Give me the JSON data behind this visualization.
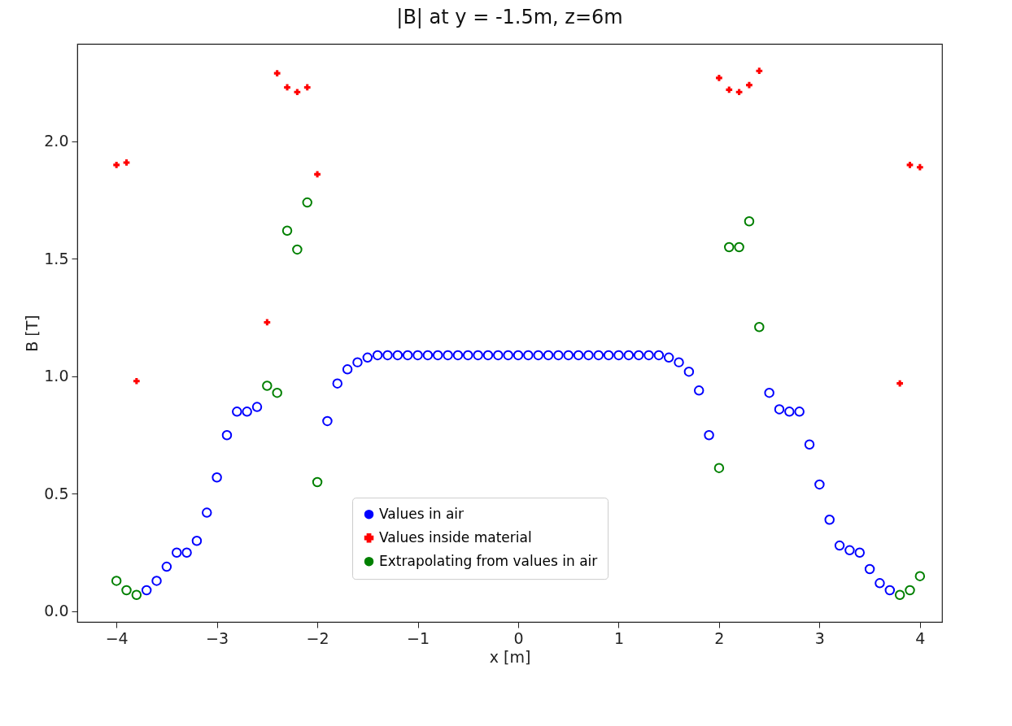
{
  "chart_data": {
    "type": "scatter",
    "title": "|B| at y = -1.5m, z=6m",
    "xlabel": "x [m]",
    "ylabel": "B [T]",
    "xlim": [
      -4.39,
      4.22
    ],
    "ylim": [
      -0.045,
      2.415
    ],
    "xticks": [
      {
        "value": -4,
        "label": "−4"
      },
      {
        "value": -3,
        "label": "−3"
      },
      {
        "value": -2,
        "label": "−2"
      },
      {
        "value": -1,
        "label": "−1"
      },
      0,
      1,
      2,
      3,
      4
    ],
    "yticks": [
      {
        "value": 0,
        "label": "0.0"
      },
      0.5,
      {
        "value": 1,
        "label": "1.0"
      },
      1.5,
      {
        "value": 2,
        "label": "2.0"
      }
    ],
    "grid": false,
    "legend": "bottom",
    "series": [
      {
        "name": "Values in air",
        "color": "#0000ff",
        "marker": "circle",
        "x": [
          -3.7,
          -3.6,
          -3.5,
          -3.4,
          -3.3,
          -3.2,
          -3.1,
          -3.0,
          -2.9,
          -2.8,
          -2.7,
          -2.6,
          -1.9,
          -1.8,
          -1.7,
          -1.6,
          -1.5,
          -1.4,
          -1.3,
          -1.2,
          -1.1,
          -1.0,
          -0.9,
          -0.8,
          -0.7,
          -0.6,
          -0.5,
          -0.4,
          -0.3,
          -0.2,
          -0.1,
          0,
          0.1,
          0.2,
          0.3,
          0.4,
          0.5,
          0.6,
          0.7,
          0.8,
          0.9,
          1.0,
          1.1,
          1.2,
          1.3,
          1.4,
          1.5,
          1.6,
          1.7,
          1.8,
          1.9,
          2.5,
          2.6,
          2.7,
          2.8,
          2.9,
          3.0,
          3.1,
          3.2,
          3.3,
          3.4,
          3.5,
          3.6,
          3.7
        ],
        "values": [
          0.09,
          0.13,
          0.19,
          0.25,
          0.25,
          0.3,
          0.42,
          0.57,
          0.75,
          0.85,
          0.85,
          0.87,
          0.81,
          0.97,
          1.03,
          1.06,
          1.08,
          1.09,
          1.09,
          1.09,
          1.09,
          1.09,
          1.09,
          1.09,
          1.09,
          1.09,
          1.09,
          1.09,
          1.09,
          1.09,
          1.09,
          1.09,
          1.09,
          1.09,
          1.09,
          1.09,
          1.09,
          1.09,
          1.09,
          1.09,
          1.09,
          1.09,
          1.09,
          1.09,
          1.09,
          1.09,
          1.08,
          1.06,
          1.02,
          0.94,
          0.75,
          0.93,
          0.86,
          0.85,
          0.85,
          0.71,
          0.54,
          0.39,
          0.28,
          0.26,
          0.25,
          0.18,
          0.12,
          0.09
        ]
      },
      {
        "name": "Values inside material",
        "color": "#ff0000",
        "marker": "cross",
        "x": [
          -4.0,
          -3.9,
          -3.8,
          -2.5,
          -2.4,
          -2.3,
          -2.2,
          -2.1,
          -2.0,
          2.0,
          2.1,
          2.2,
          2.3,
          2.4,
          3.8,
          3.9,
          4.0
        ],
        "values": [
          1.9,
          1.91,
          0.98,
          1.23,
          2.29,
          2.23,
          2.21,
          2.23,
          1.86,
          2.27,
          2.22,
          2.21,
          2.24,
          2.3,
          0.97,
          1.9,
          1.89
        ]
      },
      {
        "name": "Extrapolating from values in air",
        "color": "#008000",
        "marker": "circle",
        "x": [
          -4.0,
          -3.9,
          -3.8,
          -2.5,
          -2.4,
          -2.3,
          -2.2,
          -2.1,
          -2.0,
          2.0,
          2.1,
          2.2,
          2.3,
          2.4,
          3.8,
          3.9,
          4.0
        ],
        "values": [
          0.13,
          0.09,
          0.07,
          0.96,
          0.93,
          1.62,
          1.54,
          1.74,
          0.55,
          0.61,
          1.55,
          1.55,
          1.66,
          1.21,
          0.07,
          0.09,
          0.15
        ]
      }
    ]
  }
}
